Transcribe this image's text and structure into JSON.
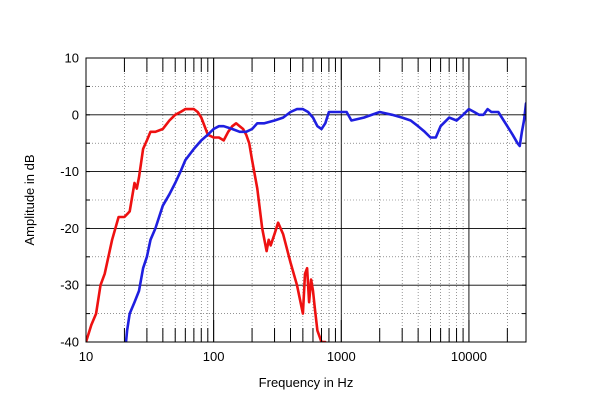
{
  "chart_data": {
    "type": "line",
    "title": "",
    "xlabel": "Frequency in Hz",
    "ylabel": "Amplitude in dB",
    "xscale": "log",
    "xlim": [
      10,
      28000
    ],
    "ylim": [
      -40,
      10
    ],
    "grid": true,
    "legend": "none",
    "x_tick_labels": [
      "10",
      "100",
      "1000",
      "10000"
    ],
    "x_tick_values": [
      10,
      100,
      1000,
      10000
    ],
    "y_tick_labels": [
      "10",
      "0",
      "-10",
      "-20",
      "-30",
      "-40"
    ],
    "y_tick_values": [
      10,
      0,
      -10,
      -20,
      -30,
      -40
    ],
    "series": [
      {
        "color": "#ee1111",
        "x": [
          10,
          11,
          12,
          13,
          14,
          16,
          18,
          20,
          21,
          22,
          24,
          25,
          26,
          28,
          30,
          32,
          35,
          40,
          45,
          50,
          55,
          60,
          65,
          70,
          75,
          80,
          85,
          90,
          100,
          110,
          120,
          130,
          140,
          150,
          160,
          170,
          180,
          190,
          200,
          220,
          240,
          260,
          270,
          280,
          300,
          320,
          350,
          400,
          450,
          500,
          520,
          540,
          560,
          580,
          600,
          620,
          650,
          700,
          750,
          800
        ],
        "values": [
          -40,
          -37,
          -35,
          -30,
          -28,
          -22,
          -18,
          -18,
          -17.5,
          -17,
          -12,
          -13,
          -11,
          -6,
          -4.5,
          -3,
          -3,
          -2.5,
          -1,
          0,
          0.5,
          1,
          1,
          1,
          0.5,
          -0.5,
          -2,
          -3.5,
          -4,
          -4,
          -4.5,
          -3,
          -2,
          -1.5,
          -2,
          -2.5,
          -3.5,
          -5,
          -8,
          -13,
          -20,
          -24,
          -22,
          -23,
          -21,
          -19,
          -21,
          -26,
          -30,
          -35,
          -28,
          -27,
          -33,
          -29,
          -31,
          -34,
          -38,
          -40,
          -40,
          -42
        ]
      },
      {
        "color": "#1f1fe0",
        "x": [
          20,
          21,
          22,
          24,
          26,
          28,
          30,
          32,
          35,
          40,
          45,
          50,
          55,
          60,
          70,
          80,
          90,
          100,
          110,
          120,
          140,
          160,
          180,
          200,
          220,
          250,
          300,
          350,
          400,
          450,
          500,
          550,
          600,
          650,
          700,
          750,
          800,
          900,
          1000,
          1100,
          1200,
          1500,
          2000,
          2500,
          3000,
          3500,
          4000,
          4500,
          5000,
          5500,
          6000,
          7000,
          8000,
          9000,
          10000,
          11000,
          12000,
          13000,
          14000,
          15000,
          17000,
          20000,
          22000,
          24000,
          25000,
          26000,
          27000,
          28000
        ],
        "values": [
          -43,
          -38,
          -35,
          -33,
          -31,
          -27,
          -25,
          -22,
          -20,
          -16,
          -14,
          -12,
          -10,
          -8,
          -6,
          -4.5,
          -3.5,
          -2.5,
          -2,
          -2,
          -2.5,
          -3,
          -3,
          -2.5,
          -1.5,
          -1.5,
          -1,
          -0.5,
          0.5,
          1,
          1,
          0.5,
          -0.5,
          -2,
          -2.5,
          -1.5,
          0.5,
          0.5,
          0.5,
          0.5,
          -1,
          -0.5,
          0.5,
          0,
          -0.5,
          -1,
          -2,
          -3,
          -4,
          -4,
          -2,
          -0.5,
          -1,
          0,
          1,
          0.5,
          0,
          0,
          1,
          0.5,
          0.5,
          -2,
          -3.5,
          -5,
          -5.5,
          -3,
          -1,
          2
        ]
      }
    ]
  }
}
